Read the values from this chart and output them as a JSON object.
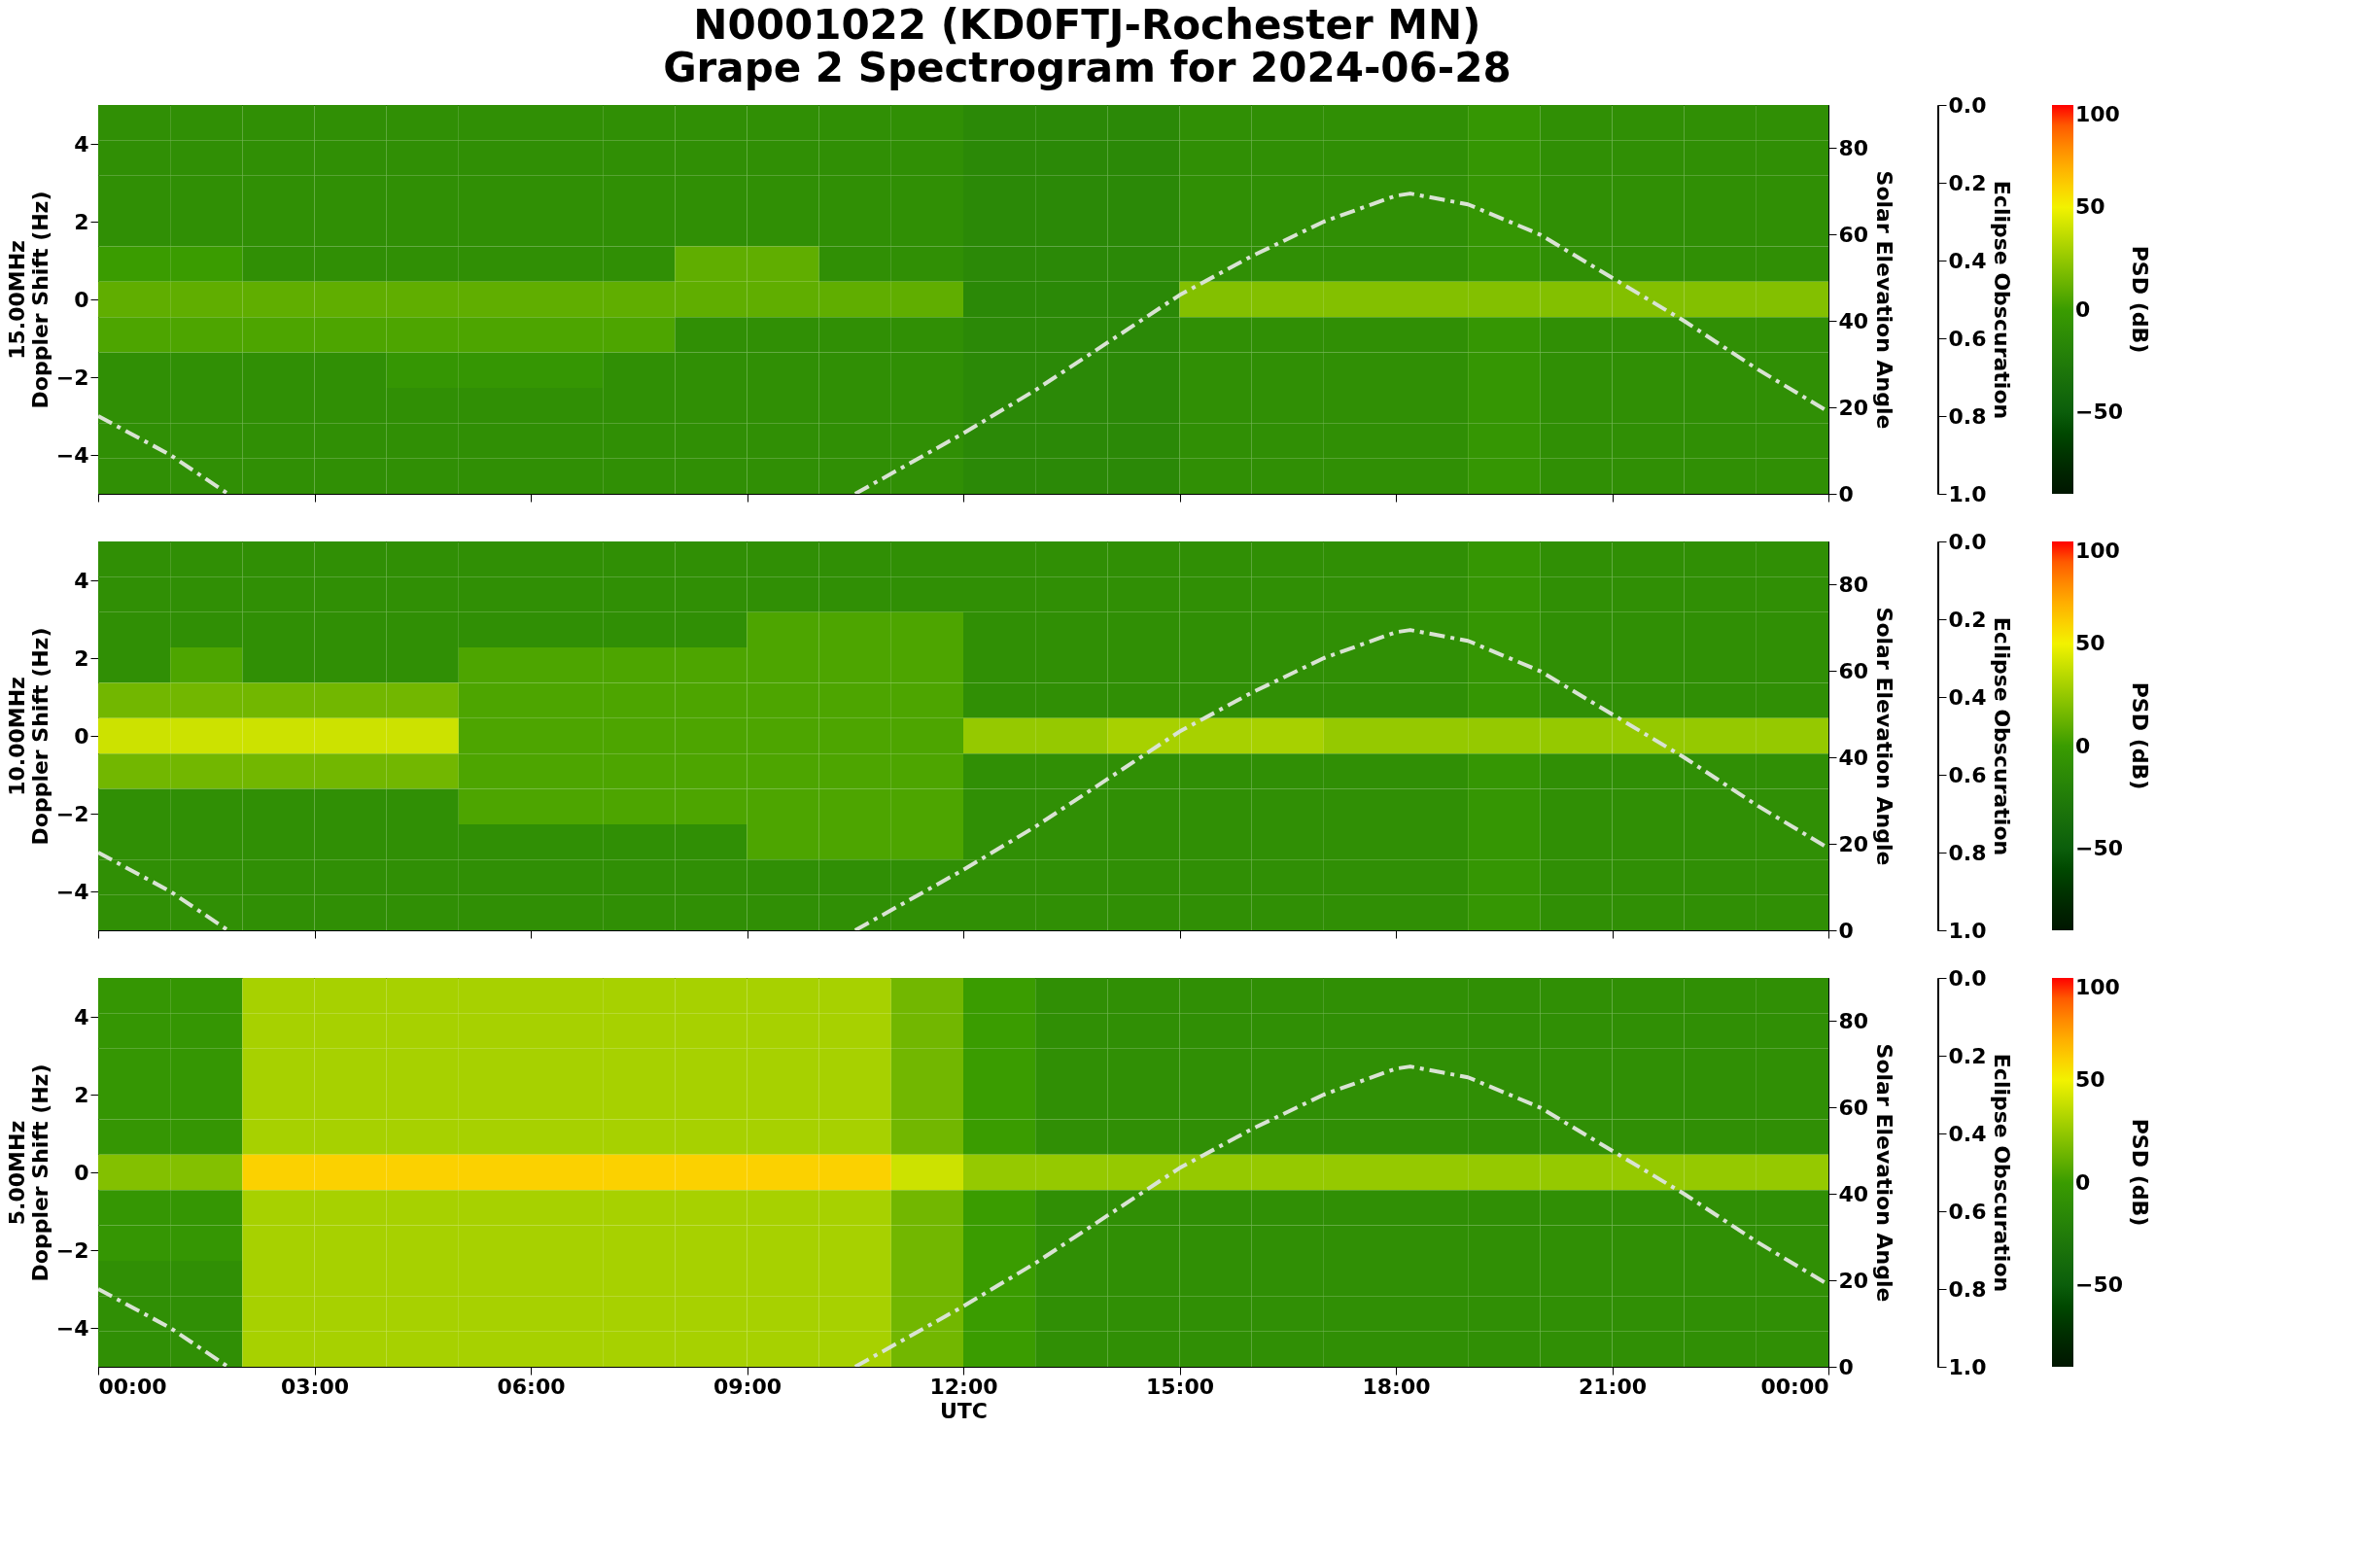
{
  "chart_data": [
    {
      "type": "heatmap",
      "title": "N0001022 (KD0FTJ-Rochester MN)",
      "subtitle": "Grape 2 Spectrogram for 2024-06-28",
      "ylabel": "15.00MHz\nDoppler Shift (Hz)",
      "y2label": "Solar Elevation Angle",
      "y3label": "Eclipse Obscuration",
      "legend_title": "PSD (dB)",
      "x": [
        0.5,
        1.5,
        2.5,
        3.5,
        4.5,
        5.5,
        6.5,
        7.5,
        8.5,
        9.5,
        10.5,
        11.5,
        12.5,
        13.5,
        14.5,
        15.5,
        16.5,
        17.5,
        18.5,
        19.5,
        20.5,
        21.5,
        22.5,
        23.5
      ],
      "xlim": [
        0,
        24
      ],
      "xticks": [
        {
          "value": 0,
          "label": null
        },
        {
          "value": 3,
          "label": null
        },
        {
          "value": 6,
          "label": null
        },
        {
          "value": 9,
          "label": null
        },
        {
          "value": 12,
          "label": null
        },
        {
          "value": 15,
          "label": null
        },
        {
          "value": 18,
          "label": null
        },
        {
          "value": 21,
          "label": null
        },
        {
          "value": 24,
          "label": null
        }
      ],
      "ylim": [
        -5,
        5
      ],
      "yticks": [
        -4,
        -2,
        0,
        2,
        4
      ],
      "y2lim": [
        0,
        90
      ],
      "y2ticks": [
        0,
        20,
        40,
        60,
        80
      ],
      "y3lim": [
        1.0,
        0.0
      ],
      "y3ticks": [
        {
          "value": 0,
          "label": "0.0"
        },
        {
          "value": 0.2,
          "label": "0.2"
        },
        {
          "value": 0.4,
          "label": "0.4"
        },
        {
          "value": 0.6,
          "label": "0.6"
        },
        {
          "value": 0.8,
          "label": "0.8"
        },
        {
          "value": 1,
          "label": "1.0"
        }
      ],
      "clim": [
        -90,
        100
      ],
      "cticks": [
        -50,
        0,
        50,
        100
      ],
      "tick_labels": "y",
      "cells": [
        [
          -10,
          -10,
          -10,
          -10,
          -10,
          -10,
          -10,
          -10,
          -10,
          -10,
          -10,
          -10,
          -15,
          -15,
          -15,
          -10,
          -10,
          -10,
          -10,
          -5,
          -10,
          -10,
          -10,
          -10
        ],
        [
          -10,
          -10,
          -10,
          -10,
          -10,
          -10,
          -10,
          -10,
          -10,
          -10,
          -10,
          -10,
          -15,
          -15,
          -15,
          -10,
          -10,
          -10,
          -10,
          -5,
          -10,
          -10,
          -10,
          -10
        ],
        [
          -10,
          -10,
          -10,
          -10,
          -10,
          -10,
          -10,
          -10,
          -10,
          -10,
          -10,
          -10,
          -15,
          -15,
          -15,
          -10,
          -10,
          -10,
          -10,
          -5,
          -10,
          -10,
          -10,
          -10
        ],
        [
          -10,
          -10,
          -10,
          -10,
          -10,
          -10,
          -10,
          -10,
          -10,
          -10,
          -10,
          -10,
          -15,
          -15,
          -15,
          -10,
          -10,
          -10,
          -10,
          -5,
          -10,
          -10,
          -10,
          -10
        ],
        [
          0,
          0,
          -10,
          -10,
          -10,
          -10,
          -10,
          -10,
          10,
          10,
          -10,
          -10,
          -15,
          -15,
          -15,
          -10,
          -10,
          -10,
          -10,
          -5,
          -10,
          -10,
          -10,
          -10
        ],
        [
          10,
          10,
          10,
          10,
          10,
          10,
          10,
          10,
          10,
          10,
          10,
          10,
          -15,
          -15,
          -15,
          20,
          20,
          20,
          20,
          20,
          20,
          20,
          20,
          20
        ],
        [
          5,
          5,
          5,
          5,
          5,
          5,
          5,
          5,
          -10,
          -10,
          -10,
          -10,
          -15,
          -15,
          -15,
          -10,
          -10,
          -10,
          -10,
          -5,
          -10,
          -10,
          -10,
          -10
        ],
        [
          -10,
          -10,
          -10,
          -10,
          -5,
          -5,
          -5,
          -10,
          -10,
          -10,
          -10,
          -10,
          -15,
          -15,
          -15,
          -10,
          -10,
          -10,
          -10,
          -5,
          -10,
          -10,
          -10,
          -10
        ],
        [
          -10,
          -10,
          -10,
          -10,
          -10,
          -10,
          -10,
          -10,
          -10,
          -10,
          -10,
          -10,
          -15,
          -15,
          -15,
          -10,
          -10,
          -10,
          -10,
          -5,
          -10,
          -10,
          -10,
          -10
        ],
        [
          -10,
          -10,
          -10,
          -10,
          -10,
          -10,
          -10,
          -10,
          -10,
          -10,
          -10,
          -10,
          -15,
          -15,
          -15,
          -10,
          -10,
          -10,
          -10,
          -5,
          -10,
          -10,
          -10,
          -10
        ],
        [
          -10,
          -10,
          -10,
          -10,
          -10,
          -10,
          -10,
          -10,
          -10,
          -10,
          -10,
          -10,
          -15,
          -15,
          -15,
          -10,
          -10,
          -10,
          -10,
          -5,
          -10,
          -10,
          -10,
          -10
        ]
      ],
      "series": [
        {
          "type": "line",
          "axis": "y2",
          "color": "#d9e3d3",
          "line_style": "dashdot",
          "x": [
            0,
            1,
            1.8,
            6,
            10.5,
            12,
            13,
            14,
            15,
            16,
            17,
            18,
            18.2,
            19,
            20,
            21,
            22,
            23,
            24
          ],
          "values": [
            18,
            9,
            0,
            null,
            0,
            14,
            24,
            35,
            46,
            55,
            63,
            69,
            69.5,
            67,
            60,
            50,
            40,
            29,
            19
          ]
        }
      ]
    },
    {
      "type": "heatmap",
      "ylabel": "10.00MHz\nDoppler Shift (Hz)",
      "y2label": "Solar Elevation Angle",
      "y3label": "Eclipse Obscuration",
      "legend_title": "PSD (dB)",
      "x": [
        0.5,
        1.5,
        2.5,
        3.5,
        4.5,
        5.5,
        6.5,
        7.5,
        8.5,
        9.5,
        10.5,
        11.5,
        12.5,
        13.5,
        14.5,
        15.5,
        16.5,
        17.5,
        18.5,
        19.5,
        20.5,
        21.5,
        22.5,
        23.5
      ],
      "xlim": [
        0,
        24
      ],
      "xticks": [
        {
          "value": 0,
          "label": null
        },
        {
          "value": 3,
          "label": null
        },
        {
          "value": 6,
          "label": null
        },
        {
          "value": 9,
          "label": null
        },
        {
          "value": 12,
          "label": null
        },
        {
          "value": 15,
          "label": null
        },
        {
          "value": 18,
          "label": null
        },
        {
          "value": 21,
          "label": null
        },
        {
          "value": 24,
          "label": null
        }
      ],
      "ylim": [
        -5,
        5
      ],
      "yticks": [
        -4,
        -2,
        0,
        2,
        4
      ],
      "y2lim": [
        0,
        90
      ],
      "y2ticks": [
        0,
        20,
        40,
        60,
        80
      ],
      "y3lim": [
        1.0,
        0.0
      ],
      "y3ticks": [
        {
          "value": 0,
          "label": "0.0"
        },
        {
          "value": 0.2,
          "label": "0.2"
        },
        {
          "value": 0.4,
          "label": "0.4"
        },
        {
          "value": 0.6,
          "label": "0.6"
        },
        {
          "value": 0.8,
          "label": "0.8"
        },
        {
          "value": 1,
          "label": "1.0"
        }
      ],
      "clim": [
        -90,
        100
      ],
      "cticks": [
        -50,
        0,
        50,
        100
      ],
      "tick_labels": "y",
      "cells": [
        [
          -10,
          -10,
          -10,
          -10,
          -10,
          -10,
          -10,
          -10,
          -10,
          -10,
          -10,
          -10,
          -10,
          -10,
          -10,
          -10,
          -10,
          -10,
          -10,
          -5,
          -10,
          -10,
          -10,
          -10
        ],
        [
          -10,
          -10,
          -10,
          -10,
          -10,
          -10,
          -10,
          -10,
          -10,
          -10,
          -10,
          -10,
          -10,
          -10,
          -10,
          -10,
          -10,
          -10,
          -10,
          -5,
          -10,
          -10,
          -10,
          -10
        ],
        [
          -10,
          -10,
          -10,
          -10,
          -10,
          -10,
          -10,
          -10,
          -10,
          5,
          5,
          5,
          -10,
          -10,
          -10,
          -10,
          -10,
          -10,
          -10,
          -5,
          -10,
          -10,
          -10,
          -10
        ],
        [
          -10,
          5,
          -10,
          -10,
          -10,
          5,
          5,
          5,
          5,
          5,
          5,
          5,
          -10,
          -10,
          -10,
          -10,
          -10,
          -10,
          -10,
          -5,
          -10,
          -10,
          -10,
          -10
        ],
        [
          15,
          15,
          15,
          15,
          15,
          5,
          5,
          5,
          5,
          5,
          5,
          5,
          -10,
          -10,
          -10,
          -10,
          -10,
          -10,
          -10,
          -5,
          -10,
          -10,
          -10,
          -10
        ],
        [
          40,
          40,
          40,
          40,
          40,
          5,
          5,
          5,
          5,
          5,
          5,
          5,
          25,
          25,
          30,
          30,
          30,
          25,
          25,
          25,
          25,
          25,
          25,
          25
        ],
        [
          15,
          15,
          15,
          15,
          15,
          5,
          5,
          5,
          5,
          5,
          5,
          5,
          -10,
          -10,
          -10,
          -10,
          -10,
          -10,
          -10,
          -5,
          -10,
          -10,
          -10,
          -10
        ],
        [
          -10,
          -10,
          -10,
          -10,
          -10,
          5,
          5,
          5,
          5,
          5,
          5,
          5,
          -10,
          -10,
          -10,
          -10,
          -10,
          -10,
          -10,
          -5,
          -10,
          -10,
          -10,
          -10
        ],
        [
          -10,
          -10,
          -10,
          -10,
          -10,
          -10,
          -10,
          -10,
          -10,
          5,
          5,
          5,
          -10,
          -10,
          -10,
          -10,
          -10,
          -10,
          -10,
          -5,
          -10,
          -10,
          -10,
          -10
        ],
        [
          -10,
          -10,
          -10,
          -10,
          -10,
          -10,
          -10,
          -10,
          -10,
          -10,
          -10,
          -10,
          -10,
          -10,
          -10,
          -10,
          -10,
          -10,
          -10,
          -5,
          -10,
          -10,
          -10,
          -10
        ],
        [
          -10,
          -10,
          -10,
          -10,
          -10,
          -10,
          -10,
          -10,
          -10,
          -10,
          -10,
          -10,
          -10,
          -10,
          -10,
          -10,
          -10,
          -10,
          -10,
          -5,
          -10,
          -10,
          -10,
          -10
        ]
      ],
      "series": [
        {
          "type": "line",
          "axis": "y2",
          "color": "#d9e3d3",
          "line_style": "dashdot",
          "x": [
            0,
            1,
            1.8,
            6,
            10.5,
            12,
            13,
            14,
            15,
            16,
            17,
            18,
            18.2,
            19,
            20,
            21,
            22,
            23,
            24
          ],
          "values": [
            18,
            9,
            0,
            null,
            0,
            14,
            24,
            35,
            46,
            55,
            63,
            69,
            69.5,
            67,
            60,
            50,
            40,
            29,
            19
          ]
        }
      ]
    },
    {
      "type": "heatmap",
      "xlabel": "UTC",
      "ylabel": "5.00MHz\nDoppler Shift (Hz)",
      "y2label": "Solar Elevation Angle",
      "y3label": "Eclipse Obscuration",
      "legend_title": "PSD (dB)",
      "x": [
        0.5,
        1.5,
        2.5,
        3.5,
        4.5,
        5.5,
        6.5,
        7.5,
        8.5,
        9.5,
        10.5,
        11.5,
        12.5,
        13.5,
        14.5,
        15.5,
        16.5,
        17.5,
        18.5,
        19.5,
        20.5,
        21.5,
        22.5,
        23.5
      ],
      "xlim": [
        0,
        24
      ],
      "xticks": [
        {
          "value": 0,
          "label": "00:00"
        },
        {
          "value": 3,
          "label": "03:00"
        },
        {
          "value": 6,
          "label": "06:00"
        },
        {
          "value": 9,
          "label": "09:00"
        },
        {
          "value": 12,
          "label": "12:00"
        },
        {
          "value": 15,
          "label": "15:00"
        },
        {
          "value": 18,
          "label": "18:00"
        },
        {
          "value": 21,
          "label": "21:00"
        },
        {
          "value": 24,
          "label": "00:00"
        }
      ],
      "ylim": [
        -5,
        5
      ],
      "yticks": [
        -4,
        -2,
        0,
        2,
        4
      ],
      "y2lim": [
        0,
        90
      ],
      "y2ticks": [
        0,
        20,
        40,
        60,
        80
      ],
      "y3lim": [
        1.0,
        0.0
      ],
      "y3ticks": [
        {
          "value": 0,
          "label": "0.0"
        },
        {
          "value": 0.2,
          "label": "0.2"
        },
        {
          "value": 0.4,
          "label": "0.4"
        },
        {
          "value": 0.6,
          "label": "0.6"
        },
        {
          "value": 0.8,
          "label": "0.8"
        },
        {
          "value": 1,
          "label": "1.0"
        }
      ],
      "clim": [
        -90,
        100
      ],
      "cticks": [
        -50,
        0,
        50,
        100
      ],
      "cells": [
        [
          -5,
          -5,
          30,
          30,
          30,
          30,
          30,
          30,
          30,
          30,
          30,
          15,
          0,
          -10,
          -10,
          -10,
          -10,
          -10,
          -10,
          -10,
          -10,
          -10,
          -10,
          -10
        ],
        [
          -5,
          -5,
          30,
          30,
          30,
          30,
          30,
          30,
          30,
          30,
          30,
          15,
          0,
          -10,
          -10,
          -10,
          -10,
          -10,
          -10,
          -10,
          -10,
          -10,
          -10,
          -10
        ],
        [
          -5,
          -5,
          30,
          30,
          30,
          30,
          30,
          30,
          30,
          30,
          30,
          15,
          0,
          -10,
          -10,
          -10,
          -10,
          -10,
          -10,
          -10,
          -10,
          -10,
          -10,
          -10
        ],
        [
          -5,
          -5,
          30,
          30,
          30,
          30,
          30,
          30,
          30,
          30,
          30,
          15,
          0,
          -10,
          -10,
          -10,
          -10,
          -10,
          -10,
          -10,
          -10,
          -10,
          -10,
          -10
        ],
        [
          -5,
          -5,
          30,
          30,
          30,
          30,
          30,
          30,
          30,
          30,
          30,
          15,
          0,
          -10,
          -10,
          -10,
          -10,
          -10,
          -10,
          -10,
          -10,
          -10,
          -10,
          -10
        ],
        [
          20,
          20,
          60,
          60,
          60,
          60,
          60,
          60,
          60,
          60,
          60,
          40,
          25,
          25,
          25,
          25,
          25,
          25,
          25,
          25,
          25,
          25,
          25,
          25
        ],
        [
          -5,
          -5,
          30,
          30,
          30,
          30,
          30,
          30,
          30,
          30,
          30,
          15,
          0,
          -10,
          -10,
          -10,
          -10,
          -10,
          -10,
          -10,
          -10,
          -10,
          -10,
          -10
        ],
        [
          -5,
          -5,
          30,
          30,
          30,
          30,
          30,
          30,
          30,
          30,
          30,
          15,
          0,
          -10,
          -10,
          -10,
          -10,
          -10,
          -10,
          -10,
          -10,
          -10,
          -10,
          -10
        ],
        [
          -10,
          -10,
          30,
          30,
          30,
          30,
          30,
          30,
          30,
          30,
          30,
          15,
          0,
          -10,
          -10,
          -10,
          -10,
          -10,
          -10,
          -10,
          -10,
          -10,
          -10,
          -10
        ],
        [
          -10,
          -10,
          30,
          30,
          30,
          30,
          30,
          30,
          30,
          30,
          30,
          15,
          0,
          -10,
          -10,
          -10,
          -10,
          -10,
          -10,
          -10,
          -10,
          -10,
          -10,
          -10
        ],
        [
          -10,
          -10,
          30,
          30,
          30,
          30,
          30,
          30,
          30,
          30,
          30,
          15,
          0,
          -10,
          -10,
          -10,
          -10,
          -10,
          -10,
          -10,
          -10,
          -10,
          -10,
          -10
        ]
      ],
      "series": [
        {
          "type": "line",
          "axis": "y2",
          "color": "#d9e3d3",
          "line_style": "dashdot",
          "x": [
            0,
            1,
            1.8,
            6,
            10.5,
            12,
            13,
            14,
            15,
            16,
            17,
            18,
            18.2,
            19,
            20,
            21,
            22,
            23,
            24
          ],
          "values": [
            18,
            9,
            0,
            null,
            0,
            14,
            24,
            35,
            46,
            55,
            63,
            69,
            69.5,
            67,
            60,
            50,
            40,
            29,
            19
          ]
        }
      ]
    }
  ]
}
